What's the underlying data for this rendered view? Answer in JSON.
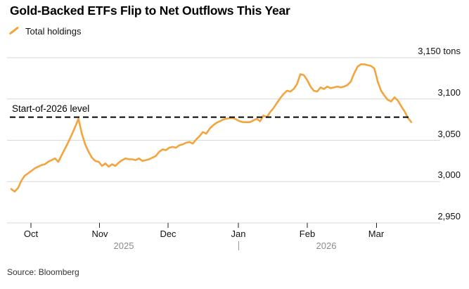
{
  "title": "Gold-Backed ETFs Flip to Net Outflows This Year",
  "legend": {
    "label": "Total holdings",
    "color": "#F3A43C"
  },
  "source": "Source: Bloomberg",
  "chart_data": {
    "type": "line",
    "title": "Gold-Backed ETFs Flip to Net Outflows This Year",
    "ylabel": "tons",
    "ylim": [
      2950,
      3150
    ],
    "grid": true,
    "legend_position": "top-left",
    "yticks": [
      2950,
      3000,
      3050,
      3100,
      3150
    ],
    "ytick_labels": [
      "2,950",
      "3,000",
      "3,050",
      "3,100",
      "3,150 tons"
    ],
    "xticks": [
      {
        "label": "Oct",
        "pos": 0.0492
      },
      {
        "label": "Nov",
        "pos": 0.2206
      },
      {
        "label": "Dec",
        "pos": 0.3919
      },
      {
        "label": "Jan",
        "pos": 0.5677
      },
      {
        "label": "Feb",
        "pos": 0.7399
      },
      {
        "label": "Mar",
        "pos": 0.913
      }
    ],
    "year_labels": [
      {
        "label": "2025",
        "pos": 0.2812
      },
      {
        "label": "2026",
        "pos": 0.7873
      }
    ],
    "year_divider_pos": 0.5677,
    "reference_line": {
      "label": "Start-of-2026 level",
      "value": 3078
    },
    "series": [
      {
        "name": "Total holdings",
        "color": "#F3A43C",
        "values": [
          2991,
          2988,
          2992,
          3001,
          3007,
          3010,
          3013,
          3016,
          3018,
          3020,
          3021,
          3024,
          3026,
          3028,
          3024,
          3032,
          3040,
          3048,
          3057,
          3066,
          3076,
          3058,
          3045,
          3036,
          3029,
          3025,
          3024,
          3019,
          3022,
          3018,
          3021,
          3019,
          3023,
          3026,
          3028,
          3027,
          3027,
          3026,
          3028,
          3025,
          3026,
          3027,
          3029,
          3031,
          3036,
          3039,
          3038,
          3041,
          3042,
          3041,
          3044,
          3045,
          3047,
          3048,
          3046,
          3051,
          3055,
          3060,
          3058,
          3064,
          3068,
          3071,
          3073,
          3075,
          3076,
          3077,
          3077,
          3075,
          3073,
          3072,
          3072,
          3072,
          3074,
          3076,
          3073,
          3080,
          3078,
          3084,
          3089,
          3095,
          3101,
          3106,
          3110,
          3109,
          3112,
          3118,
          3130,
          3129,
          3123,
          3115,
          3110,
          3109,
          3114,
          3112,
          3115,
          3113,
          3114,
          3115,
          3114,
          3115,
          3117,
          3121,
          3131,
          3139,
          3142,
          3142,
          3141,
          3140,
          3137,
          3121,
          3110,
          3104,
          3099,
          3097,
          3102,
          3098,
          3091,
          3085,
          3077,
          3072
        ]
      }
    ]
  }
}
